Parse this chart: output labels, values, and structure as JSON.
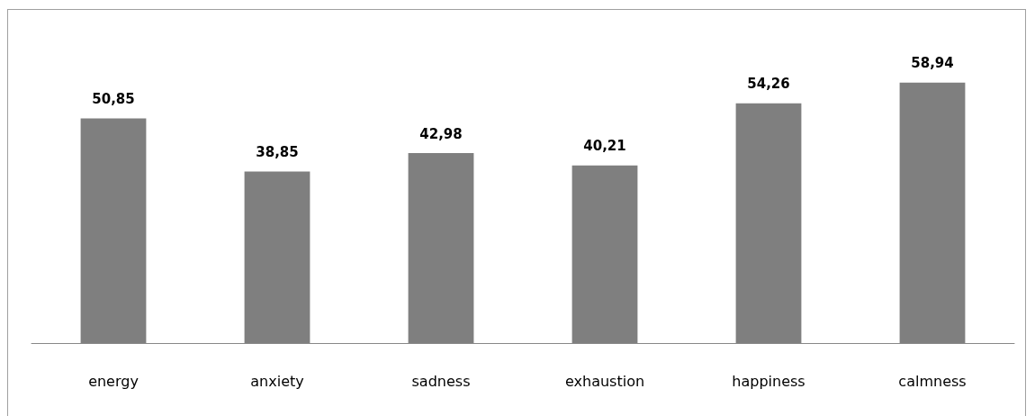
{
  "chart_data": {
    "type": "bar",
    "categories": [
      "energy",
      "anxiety",
      "sadness",
      "exhaustion",
      "happiness",
      "calmness"
    ],
    "values": [
      50.85,
      38.85,
      42.98,
      40.21,
      54.26,
      58.94
    ],
    "value_labels": [
      "50,85",
      "38,85",
      "42,98",
      "40,21",
      "54,26",
      "58,94"
    ],
    "color": "#7f7f7f",
    "ylim": [
      0,
      75
    ],
    "tick_labels": "x"
  }
}
